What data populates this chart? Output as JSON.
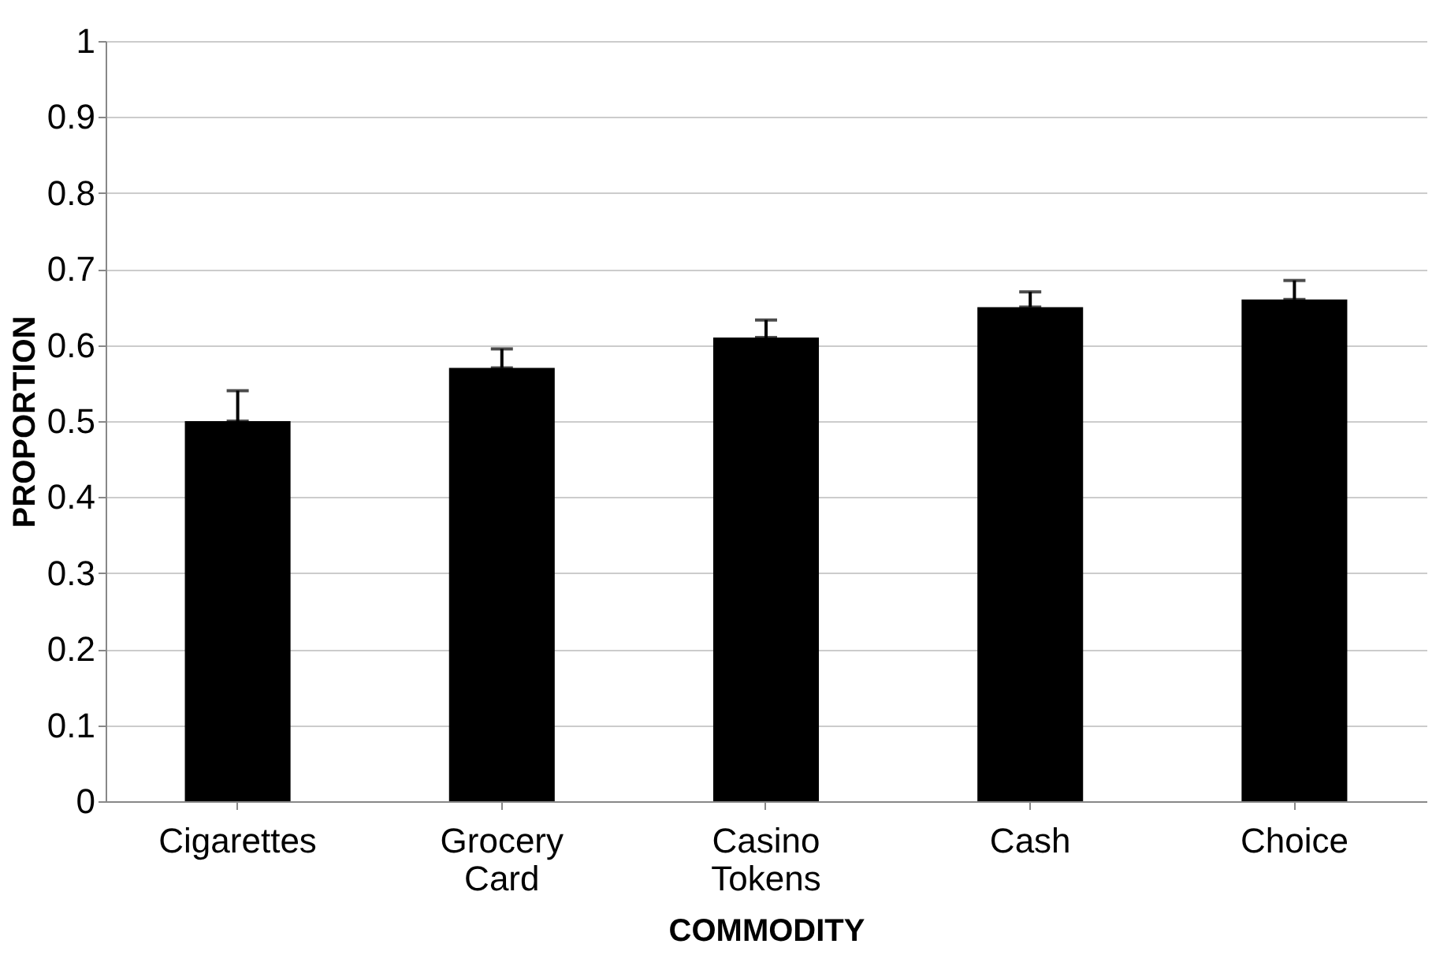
{
  "chart_data": {
    "type": "bar",
    "xlabel": "COMMODITY",
    "ylabel": "PROPORTION",
    "categories": [
      "Cigarettes",
      "Grocery Card",
      "Casino Tokens",
      "Cash",
      "Choice"
    ],
    "values": [
      0.5,
      0.57,
      0.61,
      0.65,
      0.66
    ],
    "errors": [
      [
        0.5,
        0.54
      ],
      [
        0.57,
        0.595
      ],
      [
        0.61,
        0.633
      ],
      [
        0.65,
        0.67
      ],
      [
        0.66,
        0.685
      ]
    ],
    "color": "#000000",
    "ylim": [
      0,
      1
    ],
    "yticks": [
      0,
      0.1,
      0.2,
      0.3,
      0.4,
      0.5,
      0.6,
      0.7,
      0.8,
      0.9,
      1
    ],
    "grid": "y"
  }
}
